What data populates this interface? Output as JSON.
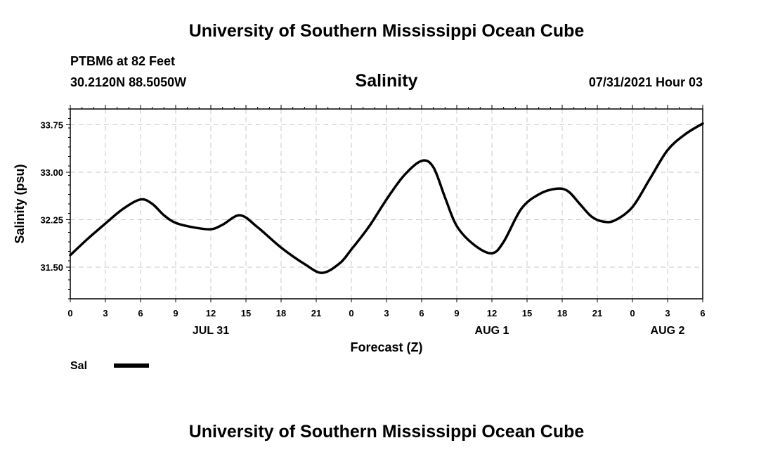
{
  "header": {
    "title": "University of Southern Mississippi Ocean Cube",
    "station": "PTBM6 at 82 Feet",
    "coords": "30.2120N  88.5050W",
    "chart_title": "Salinity",
    "run_time": "07/31/2021 Hour 03"
  },
  "footer": {
    "title": "University of Southern Mississippi Ocean Cube"
  },
  "chart_data": {
    "type": "line",
    "title": "Salinity",
    "xlabel": "Forecast (Z)",
    "ylabel": "Salinity (psu)",
    "x_unit": "hours from JUL 31 00Z",
    "xlim": [
      0,
      54
    ],
    "ylim": [
      31.0,
      34.0
    ],
    "x_ticks": [
      {
        "h": 0,
        "label": "0"
      },
      {
        "h": 3,
        "label": "3"
      },
      {
        "h": 6,
        "label": "6"
      },
      {
        "h": 9,
        "label": "9"
      },
      {
        "h": 12,
        "label": "12"
      },
      {
        "h": 15,
        "label": "15"
      },
      {
        "h": 18,
        "label": "18"
      },
      {
        "h": 21,
        "label": "21"
      },
      {
        "h": 24,
        "label": "0"
      },
      {
        "h": 27,
        "label": "3"
      },
      {
        "h": 30,
        "label": "6"
      },
      {
        "h": 33,
        "label": "9"
      },
      {
        "h": 36,
        "label": "12"
      },
      {
        "h": 39,
        "label": "15"
      },
      {
        "h": 42,
        "label": "18"
      },
      {
        "h": 45,
        "label": "21"
      },
      {
        "h": 48,
        "label": "0"
      },
      {
        "h": 51,
        "label": "3"
      },
      {
        "h": 54,
        "label": "6"
      }
    ],
    "date_labels": [
      {
        "h": 12,
        "label": "JUL 31"
      },
      {
        "h": 36,
        "label": "AUG 1"
      },
      {
        "h": 51,
        "label": "AUG 2"
      }
    ],
    "y_ticks": [
      31.5,
      32.25,
      33.0,
      33.75
    ],
    "y_tick_labels": [
      "31.50",
      "32.25",
      "33.00",
      "33.75"
    ],
    "grid": true,
    "legend": "bottom-left",
    "series": [
      {
        "name": "Sal",
        "color": "#000000",
        "x": [
          0,
          1.5,
          3,
          4.5,
          6,
          7,
          8,
          9,
          10.5,
          12,
          13,
          14.5,
          16,
          18,
          20,
          21.5,
          23,
          24,
          25.5,
          27,
          28.5,
          30,
          31,
          32,
          33,
          34.5,
          36,
          37,
          38.5,
          40,
          41.5,
          42.5,
          43.5,
          44.5,
          45.5,
          46.5,
          48,
          49.5,
          51,
          52.5,
          54
        ],
        "values": [
          31.69,
          31.95,
          32.19,
          32.42,
          32.57,
          32.5,
          32.32,
          32.2,
          32.13,
          32.1,
          32.17,
          32.32,
          32.13,
          31.81,
          31.55,
          31.41,
          31.56,
          31.78,
          32.14,
          32.57,
          32.95,
          33.18,
          33.08,
          32.6,
          32.15,
          31.85,
          31.72,
          31.9,
          32.42,
          32.65,
          32.74,
          32.7,
          32.5,
          32.3,
          32.22,
          32.24,
          32.45,
          32.9,
          33.35,
          33.6,
          33.77
        ]
      }
    ]
  }
}
